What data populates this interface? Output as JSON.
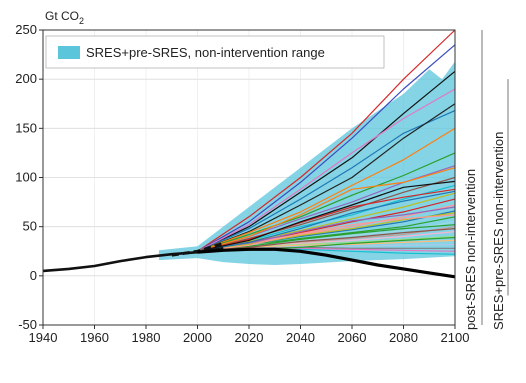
{
  "chart_data": {
    "type": "line",
    "ylabel": "Gt CO",
    "ylabel_subscript": "2",
    "xlim": [
      1940,
      2100
    ],
    "ylim": [
      -50,
      250
    ],
    "x_ticks": [
      1940,
      1960,
      1980,
      2000,
      2020,
      2040,
      2060,
      2080,
      2100
    ],
    "y_ticks": [
      -50,
      0,
      50,
      100,
      150,
      200,
      250
    ],
    "grid": true,
    "legend": {
      "position": "top-left",
      "entries": [
        {
          "label": "SRES+pre-SRES, non-intervention range",
          "color": "#5bc5dc"
        }
      ]
    },
    "side_labels": [
      "post-SRES non-intervention",
      "SRES+pre-SRES non-intervention"
    ],
    "range_band": {
      "color": "#5bc5dc",
      "upper": [
        [
          1985,
          26
        ],
        [
          2000,
          30
        ],
        [
          2020,
          70
        ],
        [
          2040,
          110
        ],
        [
          2060,
          150
        ],
        [
          2080,
          185
        ],
        [
          2090,
          210
        ],
        [
          2095,
          200
        ],
        [
          2100,
          218
        ]
      ],
      "lower": [
        [
          1985,
          16
        ],
        [
          2000,
          18
        ],
        [
          2010,
          14
        ],
        [
          2020,
          12
        ],
        [
          2030,
          11
        ],
        [
          2040,
          12
        ],
        [
          2060,
          15
        ],
        [
          2080,
          17
        ],
        [
          2100,
          20
        ]
      ]
    },
    "historical": {
      "color": "#111111",
      "points": [
        [
          1940,
          5
        ],
        [
          1950,
          7
        ],
        [
          1960,
          10
        ],
        [
          1970,
          15
        ],
        [
          1980,
          19
        ],
        [
          1990,
          22
        ],
        [
          2000,
          24
        ],
        [
          2005,
          26
        ],
        [
          2010,
          28
        ]
      ]
    },
    "dashed_projection": {
      "color": "#111111",
      "points": [
        [
          1990,
          21
        ],
        [
          2000,
          25
        ],
        [
          2010,
          33
        ]
      ]
    },
    "intervention_path": {
      "color": "#000000",
      "points": [
        [
          2000,
          24
        ],
        [
          2010,
          26
        ],
        [
          2020,
          27
        ],
        [
          2030,
          27
        ],
        [
          2040,
          25
        ],
        [
          2050,
          21
        ],
        [
          2060,
          16
        ],
        [
          2070,
          11
        ],
        [
          2080,
          7
        ],
        [
          2090,
          3
        ],
        [
          2100,
          -1
        ]
      ]
    },
    "series": [
      {
        "color": "#d62728",
        "points": [
          [
            2000,
            25
          ],
          [
            2020,
            60
          ],
          [
            2040,
            100
          ],
          [
            2060,
            145
          ],
          [
            2080,
            200
          ],
          [
            2100,
            250
          ]
        ]
      },
      {
        "color": "#3a4cc0",
        "points": [
          [
            2000,
            25
          ],
          [
            2020,
            55
          ],
          [
            2040,
            95
          ],
          [
            2060,
            140
          ],
          [
            2080,
            190
          ],
          [
            2100,
            235
          ]
        ]
      },
      {
        "color": "#111111",
        "points": [
          [
            2000,
            25
          ],
          [
            2020,
            50
          ],
          [
            2040,
            85
          ],
          [
            2060,
            120
          ],
          [
            2080,
            165
          ],
          [
            2100,
            208
          ]
        ]
      },
      {
        "color": "#e377c2",
        "points": [
          [
            2000,
            25
          ],
          [
            2020,
            52
          ],
          [
            2040,
            88
          ],
          [
            2060,
            125
          ],
          [
            2080,
            160
          ],
          [
            2100,
            190
          ]
        ]
      },
      {
        "color": "#1f77b4",
        "points": [
          [
            2000,
            25
          ],
          [
            2020,
            48
          ],
          [
            2040,
            78
          ],
          [
            2060,
            110
          ],
          [
            2080,
            145
          ],
          [
            2100,
            168
          ]
        ]
      },
      {
        "color": "#222222",
        "points": [
          [
            2000,
            25
          ],
          [
            2020,
            45
          ],
          [
            2040,
            72
          ],
          [
            2060,
            100
          ],
          [
            2080,
            140
          ],
          [
            2100,
            175
          ]
        ]
      },
      {
        "color": "#ff7f0e",
        "points": [
          [
            2000,
            25
          ],
          [
            2020,
            44
          ],
          [
            2040,
            65
          ],
          [
            2060,
            92
          ],
          [
            2080,
            118
          ],
          [
            2100,
            150
          ]
        ]
      },
      {
        "color": "#2ca02c",
        "points": [
          [
            2000,
            25
          ],
          [
            2020,
            42
          ],
          [
            2040,
            60
          ],
          [
            2060,
            82
          ],
          [
            2080,
            102
          ],
          [
            2100,
            125
          ]
        ]
      },
      {
        "color": "#9467bd",
        "points": [
          [
            2000,
            25
          ],
          [
            2020,
            40
          ],
          [
            2040,
            58
          ],
          [
            2060,
            75
          ],
          [
            2080,
            95
          ],
          [
            2100,
            112
          ]
        ]
      },
      {
        "color": "#8c564b",
        "points": [
          [
            2000,
            25
          ],
          [
            2020,
            38
          ],
          [
            2040,
            52
          ],
          [
            2060,
            68
          ],
          [
            2080,
            85
          ],
          [
            2100,
            100
          ]
        ]
      },
      {
        "color": "#17becf",
        "points": [
          [
            2000,
            25
          ],
          [
            2020,
            36
          ],
          [
            2040,
            50
          ],
          [
            2060,
            62
          ],
          [
            2080,
            78
          ],
          [
            2100,
            92
          ]
        ]
      },
      {
        "color": "#bcbd22",
        "points": [
          [
            2000,
            25
          ],
          [
            2020,
            35
          ],
          [
            2040,
            46
          ],
          [
            2060,
            58
          ],
          [
            2080,
            70
          ],
          [
            2100,
            84
          ]
        ]
      },
      {
        "color": "#d62728",
        "points": [
          [
            2000,
            25
          ],
          [
            2020,
            34
          ],
          [
            2040,
            44
          ],
          [
            2060,
            55
          ],
          [
            2080,
            65
          ],
          [
            2100,
            78
          ]
        ]
      },
      {
        "color": "#ff9896",
        "points": [
          [
            2000,
            25
          ],
          [
            2020,
            33
          ],
          [
            2040,
            42
          ],
          [
            2060,
            50
          ],
          [
            2080,
            60
          ],
          [
            2100,
            72
          ]
        ]
      },
      {
        "color": "#1f77b4",
        "points": [
          [
            2000,
            25
          ],
          [
            2020,
            32
          ],
          [
            2040,
            40
          ],
          [
            2060,
            47
          ],
          [
            2080,
            55
          ],
          [
            2100,
            66
          ]
        ]
      },
      {
        "color": "#2ca02c",
        "points": [
          [
            2000,
            25
          ],
          [
            2020,
            31
          ],
          [
            2040,
            38
          ],
          [
            2060,
            44
          ],
          [
            2080,
            50
          ],
          [
            2100,
            60
          ]
        ]
      },
      {
        "color": "#9edae5",
        "points": [
          [
            2000,
            25
          ],
          [
            2020,
            31
          ],
          [
            2040,
            36
          ],
          [
            2060,
            41
          ],
          [
            2080,
            46
          ],
          [
            2100,
            55
          ]
        ]
      },
      {
        "color": "#c49c94",
        "points": [
          [
            2000,
            25
          ],
          [
            2020,
            30
          ],
          [
            2040,
            34
          ],
          [
            2060,
            38
          ],
          [
            2080,
            42
          ],
          [
            2100,
            50
          ]
        ]
      },
      {
        "color": "#f7b6d2",
        "points": [
          [
            2000,
            25
          ],
          [
            2020,
            30
          ],
          [
            2040,
            33
          ],
          [
            2060,
            36
          ],
          [
            2080,
            40
          ],
          [
            2100,
            45
          ]
        ]
      },
      {
        "color": "#98df8a",
        "points": [
          [
            2000,
            25
          ],
          [
            2020,
            29
          ],
          [
            2040,
            32
          ],
          [
            2060,
            34
          ],
          [
            2080,
            37
          ],
          [
            2100,
            40
          ]
        ]
      },
      {
        "color": "#ffbb78",
        "points": [
          [
            2000,
            25
          ],
          [
            2020,
            29
          ],
          [
            2040,
            31
          ],
          [
            2060,
            32
          ],
          [
            2080,
            34
          ],
          [
            2100,
            36
          ]
        ]
      },
      {
        "color": "#aec7e8",
        "points": [
          [
            2000,
            25
          ],
          [
            2020,
            28
          ],
          [
            2040,
            30
          ],
          [
            2060,
            30
          ],
          [
            2080,
            31
          ],
          [
            2100,
            32
          ]
        ]
      },
      {
        "color": "#7f7f7f",
        "points": [
          [
            2000,
            25
          ],
          [
            2020,
            28
          ],
          [
            2040,
            29
          ],
          [
            2060,
            28
          ],
          [
            2080,
            28
          ],
          [
            2100,
            28
          ]
        ]
      },
      {
        "color": "#e377c2",
        "points": [
          [
            2000,
            25
          ],
          [
            2020,
            27
          ],
          [
            2040,
            28
          ],
          [
            2060,
            27
          ],
          [
            2080,
            26
          ],
          [
            2100,
            25
          ]
        ]
      },
      {
        "color": "#17becf",
        "points": [
          [
            2000,
            25
          ],
          [
            2020,
            27
          ],
          [
            2040,
            27
          ],
          [
            2060,
            25
          ],
          [
            2080,
            23
          ],
          [
            2100,
            22
          ]
        ]
      },
      {
        "color": "#ff7f0e",
        "points": [
          [
            2000,
            25
          ],
          [
            2020,
            40
          ],
          [
            2040,
            62
          ],
          [
            2060,
            88
          ],
          [
            2080,
            95
          ],
          [
            2100,
            110
          ]
        ]
      },
      {
        "color": "#d62728",
        "points": [
          [
            2000,
            25
          ],
          [
            2020,
            37
          ],
          [
            2040,
            54
          ],
          [
            2060,
            70
          ],
          [
            2080,
            80
          ],
          [
            2100,
            88
          ]
        ]
      },
      {
        "color": "#9467bd",
        "points": [
          [
            2000,
            25
          ],
          [
            2020,
            33
          ],
          [
            2040,
            45
          ],
          [
            2060,
            56
          ],
          [
            2080,
            62
          ],
          [
            2100,
            70
          ]
        ]
      },
      {
        "color": "#2ca02c",
        "points": [
          [
            2000,
            25
          ],
          [
            2020,
            30
          ],
          [
            2040,
            37
          ],
          [
            2060,
            43
          ],
          [
            2080,
            48
          ],
          [
            2100,
            52
          ]
        ]
      },
      {
        "color": "#8c564b",
        "points": [
          [
            2000,
            25
          ],
          [
            2020,
            29
          ],
          [
            2040,
            35
          ],
          [
            2060,
            39
          ],
          [
            2080,
            44
          ],
          [
            2100,
            48
          ]
        ]
      },
      {
        "color": "#bcbd22",
        "points": [
          [
            2000,
            25
          ],
          [
            2020,
            32
          ],
          [
            2040,
            41
          ],
          [
            2060,
            48
          ],
          [
            2080,
            57
          ],
          [
            2100,
            64
          ]
        ]
      },
      {
        "color": "#1f77b4",
        "points": [
          [
            2000,
            25
          ],
          [
            2020,
            34
          ],
          [
            2040,
            48
          ],
          [
            2060,
            64
          ],
          [
            2080,
            76
          ],
          [
            2100,
            86
          ]
        ]
      },
      {
        "color": "#111111",
        "points": [
          [
            2000,
            25
          ],
          [
            2020,
            36
          ],
          [
            2040,
            55
          ],
          [
            2060,
            72
          ],
          [
            2080,
            90
          ],
          [
            2100,
            96
          ]
        ]
      },
      {
        "color": "#ff9896",
        "points": [
          [
            2000,
            25
          ],
          [
            2020,
            31
          ],
          [
            2040,
            43
          ],
          [
            2060,
            52
          ],
          [
            2080,
            58
          ],
          [
            2100,
            62
          ]
        ]
      },
      {
        "color": "#2ca02c",
        "points": [
          [
            2000,
            25
          ],
          [
            2020,
            26
          ],
          [
            2040,
            29
          ],
          [
            2060,
            33
          ],
          [
            2080,
            36
          ],
          [
            2100,
            39
          ]
        ]
      }
    ]
  }
}
